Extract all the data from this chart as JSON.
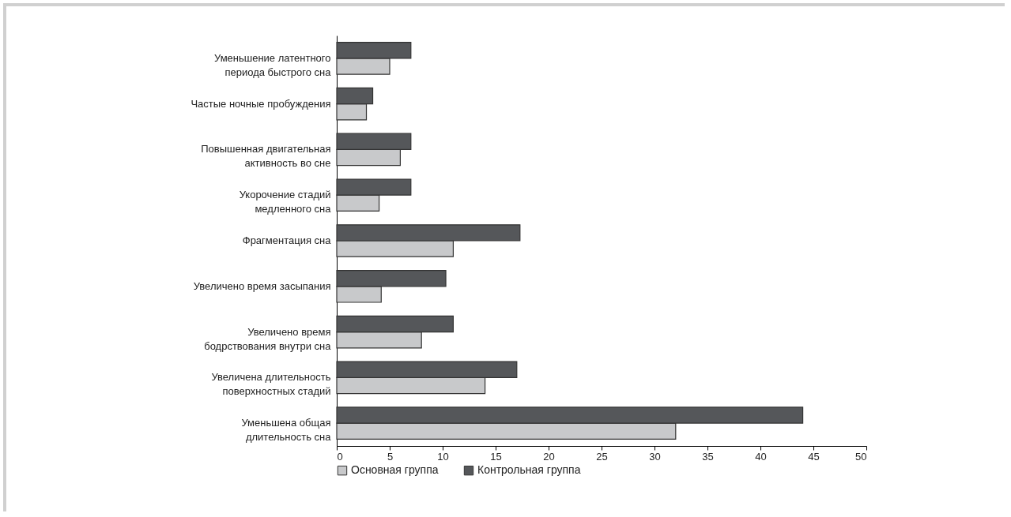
{
  "chart_data": {
    "type": "bar",
    "orientation": "horizontal",
    "categories": [
      "Уменьшение латентного периода быстрого сна",
      "Частые ночные пробуждения",
      "Повышенная двигательная активность во сне",
      "Укорочение стадий медленного сна",
      "Фрагментация сна",
      "Увеличено время засыпания",
      "Увеличено время бодрствования внутри сна",
      "Увеличена длительность поверхностных стадий",
      "Уменьшена общая длительность сна"
    ],
    "series": [
      {
        "name": "Основная группа",
        "color": "#c8c9cb",
        "values": [
          5,
          2.8,
          6,
          4,
          11,
          4.2,
          8,
          14,
          32
        ]
      },
      {
        "name": "Контрольная группа",
        "color": "#55575a",
        "values": [
          7,
          3.4,
          7,
          7,
          17.3,
          10.3,
          11,
          17,
          44
        ]
      }
    ],
    "xlim": [
      0,
      50
    ],
    "xticks": [
      0,
      5,
      10,
      15,
      20,
      25,
      30,
      35,
      40,
      45,
      50
    ],
    "grid": false,
    "legend": "bottom"
  }
}
